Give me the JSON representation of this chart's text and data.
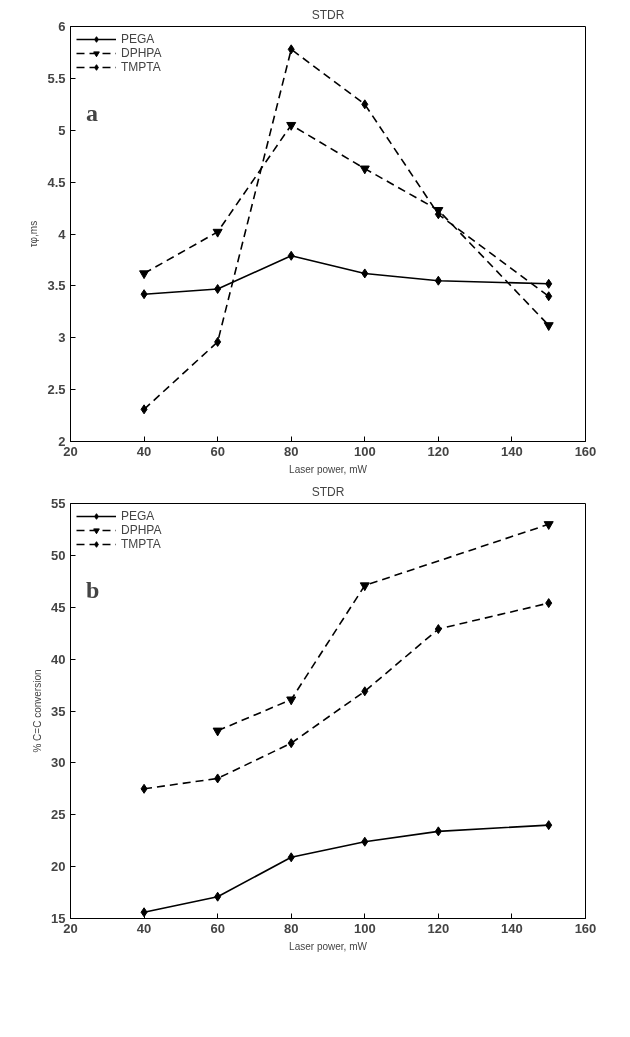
{
  "chart_data": [
    {
      "type": "line",
      "title": "STDR",
      "xlabel": "Laser power, mW",
      "ylabel": "τφ,ms",
      "annotations": [
        "a"
      ],
      "x": [
        40,
        60,
        80,
        100,
        120,
        150
      ],
      "series": [
        {
          "name": "PEGA",
          "color": "#000000",
          "values": [
            3.42,
            3.47,
            3.79,
            3.62,
            3.55,
            3.52
          ],
          "marker": "diamond",
          "line_style": "solid"
        },
        {
          "name": "DPHPA",
          "color": "#000000",
          "values": [
            3.62,
            4.02,
            5.05,
            4.63,
            4.23,
            3.12
          ],
          "marker": "triangle",
          "line_style": "dashed"
        },
        {
          "name": "TMPTA",
          "color": "#000000",
          "values": [
            2.31,
            2.96,
            5.78,
            5.25,
            4.19,
            3.4
          ],
          "marker": "diamond",
          "line_style": "dashed"
        }
      ],
      "xlim": [
        20,
        160
      ],
      "xticks": [
        20,
        40,
        60,
        80,
        100,
        120,
        140,
        160
      ],
      "ylim": [
        2,
        6
      ],
      "yticks": [
        2,
        2.5,
        3,
        3.5,
        4,
        4.5,
        5,
        5.5,
        6
      ],
      "legend": "top left"
    },
    {
      "type": "line",
      "title": "STDR",
      "xlabel": "Laser power, mW",
      "ylabel": "% C=C conversion",
      "annotations": [
        "b"
      ],
      "x": [
        40,
        60,
        80,
        100,
        120,
        150
      ],
      "series": [
        {
          "name": "PEGA",
          "color": "#000000",
          "values": [
            15.6,
            17.1,
            20.9,
            22.4,
            23.4,
            24.0
          ],
          "marker": "diamond",
          "line_style": "solid"
        },
        {
          "name": "DPHPA",
          "color": "#000000",
          "values": [
            null,
            33.1,
            36.1,
            47.1,
            null,
            53.0
          ],
          "marker": "triangle",
          "line_style": "dashed"
        },
        {
          "name": "TMPTA",
          "color": "#000000",
          "values": [
            27.5,
            28.5,
            31.9,
            36.9,
            42.9,
            45.4
          ],
          "marker": "diamond",
          "line_style": "dashed"
        }
      ],
      "xlim": [
        20,
        160
      ],
      "xticks": [
        20,
        40,
        60,
        80,
        100,
        120,
        140,
        160
      ],
      "ylim": [
        15,
        55
      ],
      "yticks": [
        15,
        20,
        25,
        30,
        35,
        40,
        45,
        50,
        55
      ],
      "legend": "top left"
    }
  ]
}
